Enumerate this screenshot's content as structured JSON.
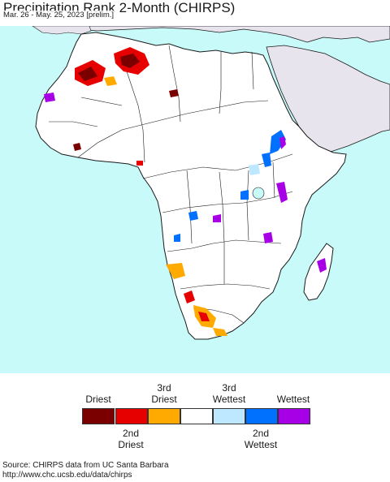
{
  "title": "Precipitation Rank 2-Month (CHIRPS)",
  "subtitle": "Mar. 26 - May. 25, 2023 [prelim.]",
  "legend": {
    "top_labels": [
      {
        "line1": "",
        "line2": "Driest"
      },
      {
        "line1": "3rd",
        "line2": "Driest"
      },
      {
        "line1": "3rd",
        "line2": "Wettest"
      },
      {
        "line1": "",
        "line2": "Wettest"
      }
    ],
    "bottom_labels": [
      {
        "line1": "2nd",
        "line2": "Driest"
      },
      {
        "line1": "2nd",
        "line2": "Wettest"
      }
    ],
    "colors": [
      "#7a0000",
      "#e60000",
      "#ffaa00",
      "#ffffff",
      "#bee8ff",
      "#0070ff",
      "#a800e6"
    ]
  },
  "map": {
    "ocean_color": "#c8fafa",
    "land_color": "#ffffff",
    "outside_region_color": "#e8e4ee",
    "border_color": "#1a1a1a"
  },
  "source": {
    "line1": "Source: CHIRPS data from UC Santa Barbara",
    "line2": "http://www.chc.ucsb.edu/data/chirps"
  }
}
